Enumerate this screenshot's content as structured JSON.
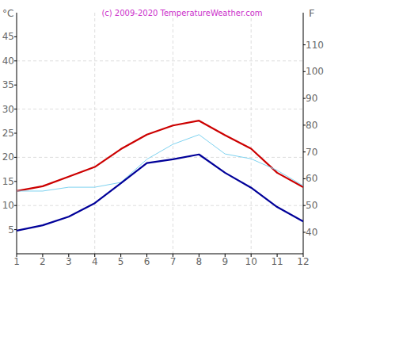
{
  "chart_data": {
    "type": "line",
    "title": "(c) 2009-2020 TemperatureWeather.com",
    "y_label": "°C",
    "y2_label": "F",
    "x": [
      1,
      2,
      3,
      4,
      5,
      6,
      7,
      8,
      9,
      10,
      11,
      12
    ],
    "xlim": [
      1,
      12
    ],
    "xticks": [
      1,
      2,
      3,
      4,
      5,
      6,
      7,
      8,
      9,
      10,
      11,
      12
    ],
    "ylim": [
      0,
      50
    ],
    "yticks": [
      5,
      10,
      15,
      20,
      25,
      30,
      35,
      40,
      45
    ],
    "y2lim": [
      32,
      122
    ],
    "y2ticks": [
      40,
      50,
      60,
      70,
      80,
      90,
      100,
      110
    ],
    "grid": true,
    "series": [
      {
        "color": "#cc0000",
        "values": [
          13,
          14,
          16,
          18,
          21.7,
          24.7,
          26.6,
          27.6,
          24.6,
          21.8,
          16.8,
          13.8
        ]
      },
      {
        "color": "#7fd3f0",
        "values": [
          13,
          13,
          13.8,
          13.8,
          14.8,
          19.6,
          22.7,
          24.7,
          20.7,
          19.7,
          17.3,
          14.1
        ]
      },
      {
        "color": "#000099",
        "values": [
          4.8,
          5.9,
          7.7,
          10.5,
          14.6,
          18.8,
          19.6,
          20.6,
          16.8,
          13.7,
          9.7,
          6.7
        ]
      }
    ]
  }
}
